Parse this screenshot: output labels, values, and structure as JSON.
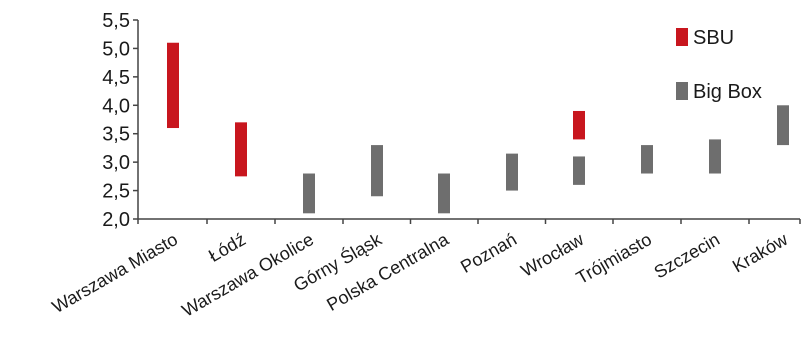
{
  "chart_data": {
    "type": "range-bar",
    "categories": [
      "Warszawa Miasto",
      "Łódź",
      "Warszawa Okolice",
      "Górny Śląsk",
      "Polska Centralna",
      "Poznań",
      "Wrocław",
      "Trójmiasto",
      "Szczecin",
      "Kraków"
    ],
    "series": [
      {
        "name": "SBU",
        "color": "#c8161e",
        "ranges": [
          [
            3.6,
            5.1
          ],
          [
            2.75,
            3.7
          ],
          null,
          null,
          null,
          null,
          [
            3.4,
            3.9
          ],
          null,
          null,
          null
        ]
      },
      {
        "name": "Big Box",
        "color": "#6e6e6e",
        "ranges": [
          null,
          null,
          [
            2.1,
            2.8
          ],
          [
            2.4,
            3.3
          ],
          [
            2.1,
            2.8
          ],
          [
            2.5,
            3.15
          ],
          [
            2.6,
            3.1
          ],
          [
            2.8,
            3.3
          ],
          [
            2.8,
            3.4
          ],
          [
            3.3,
            4.0
          ]
        ]
      }
    ],
    "yticks": [
      "2,0",
      "2,5",
      "3,0",
      "3,5",
      "4,0",
      "4,5",
      "5,0",
      "5,5"
    ],
    "ylim": [
      2.0,
      5.5
    ],
    "title": "",
    "xlabel": "",
    "ylabel": "",
    "legend_position": "top-right",
    "grid": false
  }
}
